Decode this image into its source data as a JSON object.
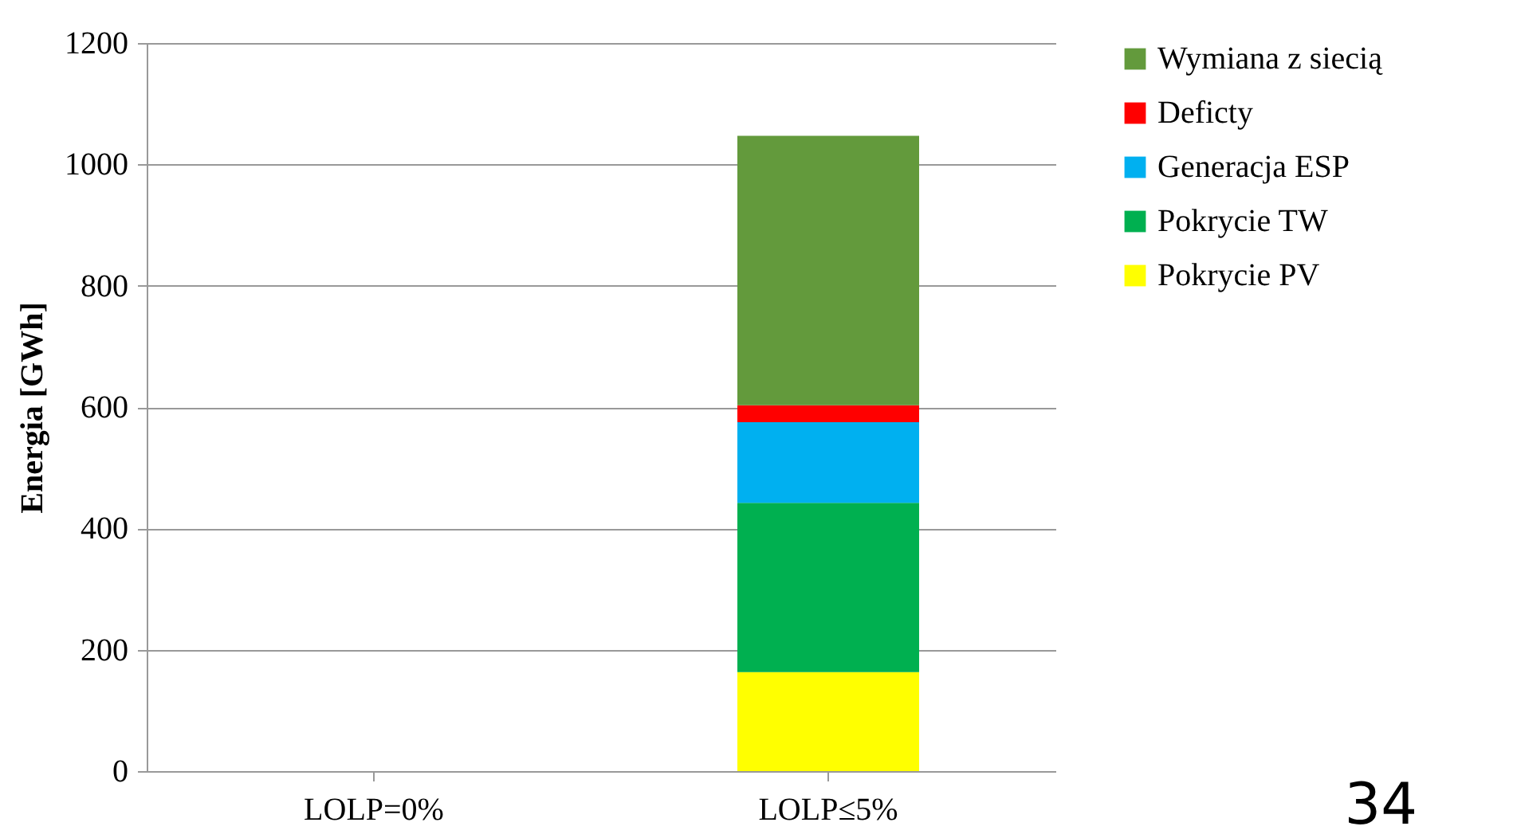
{
  "chart_data": {
    "type": "bar",
    "stacked": true,
    "ylabel": "Energia [GWh]",
    "categories": [
      "LOLP=0%",
      "LOLP≤5%"
    ],
    "series": [
      {
        "name": "Pokrycie PV",
        "color": "#ffff00",
        "values": [
          null,
          163
        ]
      },
      {
        "name": "Pokrycie TW",
        "color": "#00b050",
        "values": [
          null,
          279
        ]
      },
      {
        "name": "Generacja ESP",
        "color": "#00b0f0",
        "values": [
          null,
          133
        ]
      },
      {
        "name": "Deficty",
        "color": "#ff0000",
        "values": [
          null,
          28
        ]
      },
      {
        "name": "Wymiana z siecią",
        "color": "#639a3c",
        "values": [
          null,
          444
        ]
      }
    ],
    "ylim": [
      0,
      1200
    ],
    "yticks": [
      0,
      200,
      400,
      600,
      800,
      1000,
      1200
    ],
    "grid": "y",
    "legend": "right",
    "annotations": [
      "34"
    ]
  }
}
